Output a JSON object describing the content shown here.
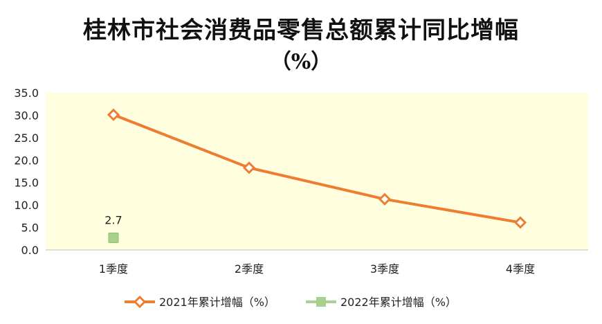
{
  "chart_data": {
    "type": "line",
    "title_line1": "桂林市社会消费品零售总额累计同比增幅",
    "title_line2": "（%）",
    "categories": [
      "1季度",
      "2季度",
      "3季度",
      "4季度"
    ],
    "ylim": [
      0,
      35
    ],
    "yticks": [
      "0.0",
      "5.0",
      "10.0",
      "15.0",
      "20.0",
      "25.0",
      "30.0",
      "35.0"
    ],
    "series": [
      {
        "name": "2021年累计增幅（%）",
        "values": [
          30.1,
          18.3,
          11.3,
          6.1
        ],
        "color": "#ED7D31",
        "marker": "diamond"
      },
      {
        "name": "2022年累计增幅（%）",
        "values": [
          2.7,
          null,
          null,
          null
        ],
        "color": "#A9D18E",
        "marker": "square",
        "data_label": "2.7"
      }
    ],
    "plot_background": "#FFFFE0",
    "legend_position": "bottom"
  }
}
